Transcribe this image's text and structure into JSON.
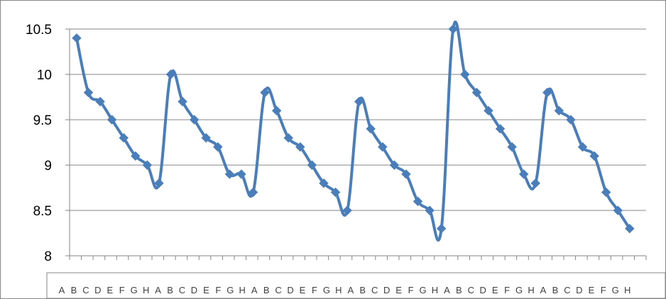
{
  "chart_data": {
    "type": "line",
    "title": "",
    "xlabel": "",
    "ylabel": "",
    "ylim": [
      8,
      10.5
    ],
    "yticks": [
      "8",
      "8.5",
      "9",
      "9.5",
      "10",
      "10.5"
    ],
    "grid": true,
    "legend": "none",
    "categories": [
      "A",
      "B",
      "C",
      "D",
      "E",
      "F",
      "G",
      "H",
      "A",
      "B",
      "C",
      "D",
      "E",
      "F",
      "G",
      "H",
      "A",
      "B",
      "C",
      "D",
      "E",
      "F",
      "G",
      "H",
      "A",
      "B",
      "C",
      "D",
      "E",
      "F",
      "G",
      "H",
      "A",
      "B",
      "C",
      "D",
      "E",
      "F",
      "G",
      "H",
      "A",
      "B",
      "C",
      "D",
      "E",
      "F",
      "G",
      "H"
    ],
    "series": [
      {
        "color": "#4a7ebb",
        "values": [
          10.4,
          9.8,
          9.7,
          9.5,
          9.3,
          9.1,
          9.0,
          8.8,
          10.0,
          9.7,
          9.5,
          9.3,
          9.2,
          8.9,
          8.9,
          8.7,
          9.8,
          9.6,
          9.3,
          9.2,
          9.0,
          8.8,
          8.7,
          8.5,
          9.7,
          9.4,
          9.2,
          9.0,
          8.9,
          8.6,
          8.5,
          8.3,
          10.5,
          10.0,
          9.8,
          9.6,
          9.4,
          9.2,
          8.9,
          8.8,
          9.8,
          9.6,
          9.5,
          9.2,
          9.1,
          8.7,
          8.5,
          8.3
        ]
      }
    ]
  }
}
